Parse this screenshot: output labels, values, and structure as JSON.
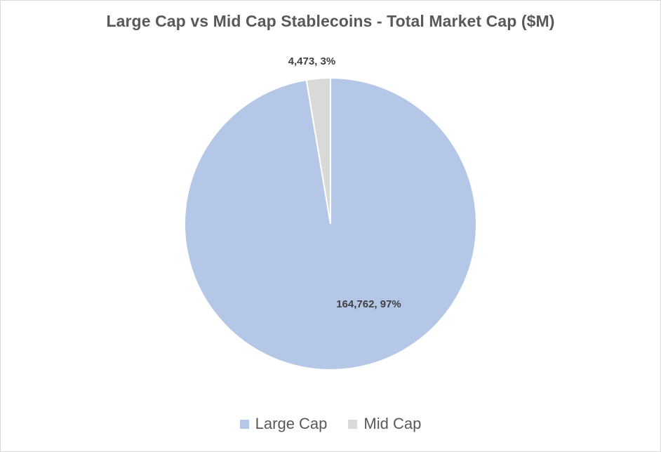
{
  "chart_data": {
    "type": "pie",
    "title": "Large Cap vs Mid Cap Stablecoins - Total Market Cap ($M)",
    "categories": [
      "Large Cap",
      "Mid Cap"
    ],
    "values": [
      164762,
      4473
    ],
    "percentages": [
      97,
      3
    ],
    "data_labels": [
      "164,762, 97%",
      "4,473, 3%"
    ],
    "colors": [
      "#b4c7e7",
      "#d9d9d9"
    ],
    "legend_position": "bottom"
  }
}
